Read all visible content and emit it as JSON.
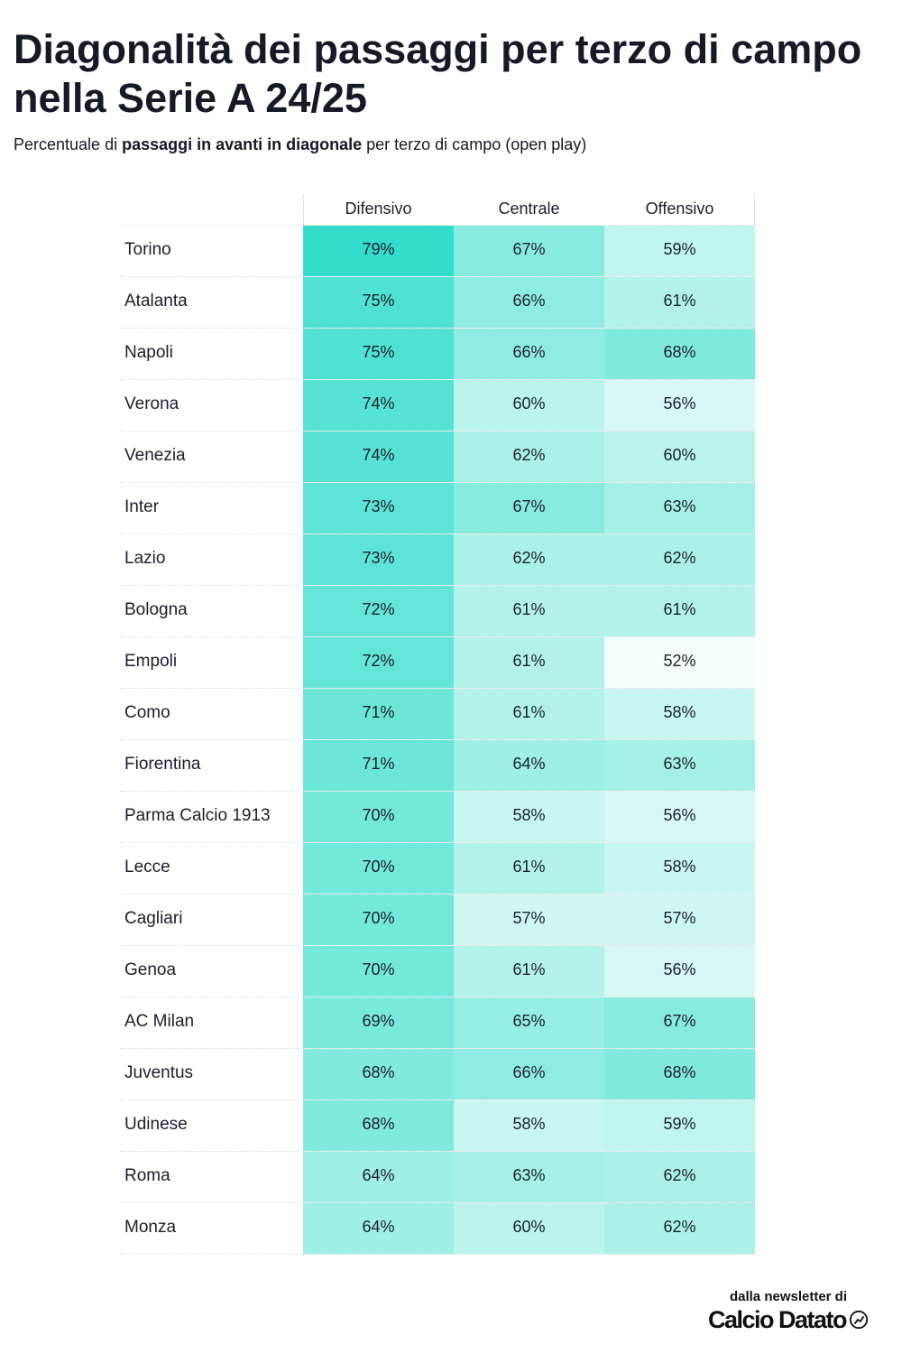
{
  "title": "Diagonalità dei passaggi per terzo di campo nella Serie A 24/25",
  "subtitle_parts": {
    "p1": "Percentuale di ",
    "b1": "passaggi in avanti in diagonale",
    "p2": " per terzo di campo (open play)"
  },
  "credit": {
    "line1": "dalla newsletter di",
    "brand": "Calcio Datato"
  },
  "colors": {
    "low": "#f3fdfb",
    "high": "#33ddcb"
  },
  "chart_data": {
    "type": "heatmap",
    "title": "Diagonalità dei passaggi per terzo di campo nella Serie A 24/25",
    "subtitle": "Percentuale di passaggi in avanti in diagonale per terzo di campo (open play)",
    "columns": [
      "Difensivo",
      "Centrale",
      "Offensivo"
    ],
    "unit": "%",
    "color_scale": {
      "min": 52,
      "max": 79,
      "low": "#f3fdfb",
      "high": "#33ddcb"
    },
    "rows": [
      {
        "team": "Torino",
        "values": [
          79,
          67,
          59
        ]
      },
      {
        "team": "Atalanta",
        "values": [
          75,
          66,
          61
        ]
      },
      {
        "team": "Napoli",
        "values": [
          75,
          66,
          68
        ]
      },
      {
        "team": "Verona",
        "values": [
          74,
          60,
          56
        ]
      },
      {
        "team": "Venezia",
        "values": [
          74,
          62,
          60
        ]
      },
      {
        "team": "Inter",
        "values": [
          73,
          67,
          63
        ]
      },
      {
        "team": "Lazio",
        "values": [
          73,
          62,
          62
        ]
      },
      {
        "team": "Bologna",
        "values": [
          72,
          61,
          61
        ]
      },
      {
        "team": "Empoli",
        "values": [
          72,
          61,
          52
        ]
      },
      {
        "team": "Como",
        "values": [
          71,
          61,
          58
        ]
      },
      {
        "team": "Fiorentina",
        "values": [
          71,
          64,
          63
        ]
      },
      {
        "team": "Parma Calcio 1913",
        "values": [
          70,
          58,
          56
        ]
      },
      {
        "team": "Lecce",
        "values": [
          70,
          61,
          58
        ]
      },
      {
        "team": "Cagliari",
        "values": [
          70,
          57,
          57
        ]
      },
      {
        "team": "Genoa",
        "values": [
          70,
          61,
          56
        ]
      },
      {
        "team": "AC Milan",
        "values": [
          69,
          65,
          67
        ]
      },
      {
        "team": "Juventus",
        "values": [
          68,
          66,
          68
        ]
      },
      {
        "team": "Udinese",
        "values": [
          68,
          58,
          59
        ]
      },
      {
        "team": "Roma",
        "values": [
          64,
          63,
          62
        ]
      },
      {
        "team": "Monza",
        "values": [
          64,
          60,
          62
        ]
      }
    ]
  }
}
